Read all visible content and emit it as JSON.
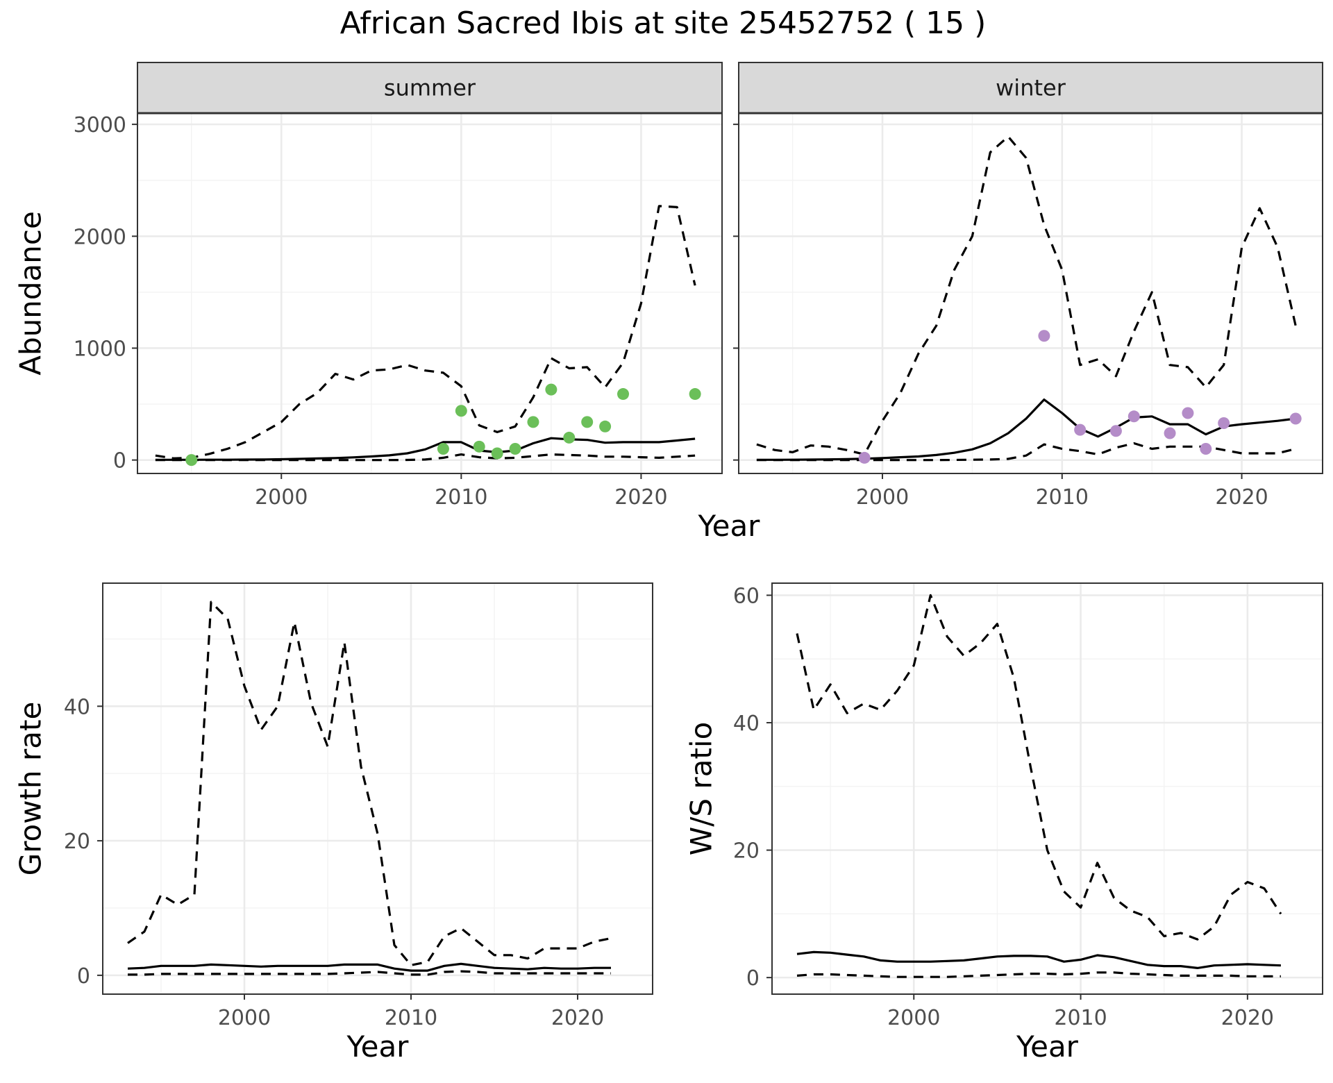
{
  "figure": {
    "title": "African Sacred Ibis at site 25452752 ( 15 )",
    "summer_color": "#6bbf59",
    "winter_color": "#b48cc8"
  },
  "chart_data": [
    {
      "type": "line",
      "panel": "summer",
      "strip_label": "summer",
      "xlabel": "Year",
      "ylabel": "Abundance",
      "xlim": [
        1992,
        2024.5
      ],
      "ylim": [
        -120,
        3100
      ],
      "xticks": [
        2000,
        2010,
        2020
      ],
      "yticks": [
        0,
        1000,
        2000,
        3000
      ],
      "grid": true,
      "series": [
        {
          "style": "solid",
          "x": [
            1993,
            1994,
            1995,
            1996,
            1997,
            1998,
            1999,
            2000,
            2001,
            2002,
            2003,
            2004,
            2005,
            2006,
            2007,
            2008,
            2009,
            2010,
            2011,
            2012,
            2013,
            2014,
            2015,
            2016,
            2017,
            2018,
            2019,
            2020,
            2021,
            2022,
            2023
          ],
          "y": [
            2,
            2,
            2,
            3,
            3,
            4,
            5,
            7,
            10,
            14,
            18,
            24,
            32,
            42,
            60,
            95,
            160,
            160,
            85,
            70,
            85,
            150,
            195,
            185,
            180,
            155,
            160,
            160,
            160,
            175,
            190
          ]
        },
        {
          "style": "dashed",
          "x": [
            1993,
            1994,
            1995,
            1996,
            1997,
            1998,
            1999,
            2000,
            2001,
            2002,
            2003,
            2004,
            2005,
            2006,
            2007,
            2008,
            2009,
            2010,
            2011,
            2012,
            2013,
            2014,
            2015,
            2016,
            2017,
            2018,
            2019,
            2020,
            2021,
            2022,
            2023
          ],
          "y": [
            40,
            15,
            20,
            55,
            100,
            160,
            250,
            340,
            500,
            600,
            770,
            720,
            800,
            810,
            850,
            800,
            780,
            660,
            310,
            250,
            300,
            560,
            910,
            820,
            830,
            650,
            870,
            1400,
            2270,
            2260,
            1560
          ]
        },
        {
          "style": "dashed",
          "x": [
            1993,
            1994,
            1995,
            1996,
            1997,
            1998,
            1999,
            2000,
            2001,
            2002,
            2003,
            2004,
            2005,
            2006,
            2007,
            2008,
            2009,
            2010,
            2011,
            2012,
            2013,
            2014,
            2015,
            2016,
            2017,
            2018,
            2019,
            2020,
            2021,
            2022,
            2023
          ],
          "y": [
            0,
            0,
            0,
            0,
            0,
            0,
            0,
            0,
            0,
            0,
            0,
            0,
            0,
            0,
            1,
            5,
            20,
            50,
            25,
            15,
            20,
            35,
            50,
            45,
            40,
            30,
            30,
            25,
            20,
            30,
            40
          ]
        }
      ],
      "points": {
        "x": [
          1995,
          2009,
          2010,
          2011,
          2012,
          2013,
          2014,
          2015,
          2016,
          2017,
          2018,
          2019,
          2023
        ],
        "y": [
          0,
          100,
          440,
          120,
          60,
          100,
          340,
          630,
          200,
          340,
          300,
          590,
          590
        ]
      }
    },
    {
      "type": "line",
      "panel": "winter",
      "strip_label": "winter",
      "xlabel": "Year",
      "ylabel": "Abundance",
      "xlim": [
        1992,
        2024.5
      ],
      "ylim": [
        -120,
        3100
      ],
      "xticks": [
        2000,
        2010,
        2020
      ],
      "yticks": [
        0,
        1000,
        2000,
        3000
      ],
      "grid": true,
      "series": [
        {
          "style": "solid",
          "x": [
            1993,
            1994,
            1995,
            1996,
            1997,
            1998,
            1999,
            2000,
            2001,
            2002,
            2003,
            2004,
            2005,
            2006,
            2007,
            2008,
            2009,
            2010,
            2011,
            2012,
            2013,
            2014,
            2015,
            2016,
            2017,
            2018,
            2019,
            2020,
            2021,
            2022,
            2023
          ],
          "y": [
            2,
            2,
            3,
            4,
            6,
            8,
            12,
            18,
            25,
            32,
            45,
            65,
            95,
            150,
            240,
            370,
            540,
            420,
            280,
            210,
            290,
            380,
            390,
            320,
            320,
            230,
            300,
            320,
            335,
            350,
            370
          ]
        },
        {
          "style": "dashed",
          "x": [
            1993,
            1994,
            1995,
            1996,
            1997,
            1998,
            1999,
            2000,
            2001,
            2002,
            2003,
            2004,
            2005,
            2006,
            2007,
            2008,
            2009,
            2010,
            2011,
            2012,
            2013,
            2014,
            2015,
            2016,
            2017,
            2018,
            2019,
            2020,
            2021,
            2022,
            2023
          ],
          "y": [
            140,
            90,
            70,
            130,
            120,
            90,
            50,
            350,
            600,
            950,
            1200,
            1700,
            2000,
            2750,
            2890,
            2700,
            2100,
            1700,
            850,
            900,
            750,
            1150,
            1500,
            850,
            830,
            650,
            850,
            1900,
            2250,
            1900,
            1200
          ]
        },
        {
          "style": "dashed",
          "x": [
            1993,
            1994,
            1995,
            1996,
            1997,
            1998,
            1999,
            2000,
            2001,
            2002,
            2003,
            2004,
            2005,
            2006,
            2007,
            2008,
            2009,
            2010,
            2011,
            2012,
            2013,
            2014,
            2015,
            2016,
            2017,
            2018,
            2019,
            2020,
            2021,
            2022,
            2023
          ],
          "y": [
            0,
            0,
            0,
            0,
            0,
            0,
            0,
            0,
            0,
            0,
            0,
            1,
            3,
            5,
            10,
            40,
            140,
            100,
            80,
            50,
            110,
            150,
            100,
            120,
            120,
            120,
            90,
            60,
            60,
            60,
            100
          ]
        }
      ],
      "points": {
        "x": [
          1999,
          2009,
          2011,
          2013,
          2014,
          2016,
          2017,
          2018,
          2019,
          2023
        ],
        "y": [
          20,
          1110,
          270,
          260,
          390,
          240,
          420,
          100,
          330,
          370
        ]
      }
    },
    {
      "type": "line",
      "panel": "growth",
      "xlabel": "Year",
      "ylabel": "Growth rate",
      "xlim": [
        1991.5,
        2024.5
      ],
      "ylim": [
        -2.8,
        58.3
      ],
      "xticks": [
        2000,
        2010,
        2020
      ],
      "yticks": [
        0,
        20,
        40
      ],
      "grid": true,
      "series": [
        {
          "style": "solid",
          "x": [
            1993,
            1994,
            1995,
            1996,
            1997,
            1998,
            1999,
            2000,
            2001,
            2002,
            2003,
            2004,
            2005,
            2006,
            2007,
            2008,
            2009,
            2010,
            2011,
            2012,
            2013,
            2014,
            2015,
            2016,
            2017,
            2018,
            2019,
            2020,
            2021,
            2022
          ],
          "y": [
            1.0,
            1.1,
            1.4,
            1.4,
            1.4,
            1.6,
            1.5,
            1.4,
            1.3,
            1.4,
            1.4,
            1.4,
            1.4,
            1.6,
            1.6,
            1.6,
            1.0,
            0.7,
            0.7,
            1.4,
            1.7,
            1.4,
            1.1,
            1.0,
            0.9,
            1.1,
            1.0,
            1.0,
            1.1,
            1.1
          ]
        },
        {
          "style": "dashed",
          "x": [
            1993,
            1994,
            1995,
            1996,
            1997,
            1998,
            1999,
            2000,
            2001,
            2002,
            2003,
            2004,
            2005,
            2006,
            2007,
            2008,
            2009,
            2010,
            2011,
            2012,
            2013,
            2014,
            2015,
            2016,
            2017,
            2018,
            2019,
            2020,
            2021,
            2022
          ],
          "y": [
            4.8,
            6.5,
            12.0,
            10.5,
            12.0,
            55.5,
            53.0,
            43.0,
            36.5,
            40.0,
            52.5,
            40.5,
            34.0,
            49.5,
            31.0,
            21.0,
            4.5,
            1.5,
            2.0,
            5.8,
            7.0,
            5.0,
            3.0,
            3.0,
            2.5,
            4.0,
            4.0,
            4.0,
            5.0,
            5.5
          ]
        },
        {
          "style": "dashed",
          "x": [
            1993,
            1994,
            1995,
            1996,
            1997,
            1998,
            1999,
            2000,
            2001,
            2002,
            2003,
            2004,
            2005,
            2006,
            2007,
            2008,
            2009,
            2010,
            2011,
            2012,
            2013,
            2014,
            2015,
            2016,
            2017,
            2018,
            2019,
            2020,
            2021,
            2022
          ],
          "y": [
            0.1,
            0.1,
            0.2,
            0.2,
            0.2,
            0.2,
            0.2,
            0.2,
            0.2,
            0.2,
            0.2,
            0.2,
            0.2,
            0.3,
            0.4,
            0.5,
            0.3,
            0.1,
            0.1,
            0.5,
            0.6,
            0.5,
            0.3,
            0.3,
            0.3,
            0.3,
            0.3,
            0.3,
            0.3,
            0.3
          ]
        }
      ]
    },
    {
      "type": "line",
      "panel": "ratio",
      "xlabel": "Year",
      "ylabel": "W/S ratio",
      "xlim": [
        1991.5,
        2024.5
      ],
      "ylim": [
        -2.6,
        61.9
      ],
      "xticks": [
        2000,
        2010,
        2020
      ],
      "yticks": [
        0,
        20,
        40,
        60
      ],
      "grid": true,
      "series": [
        {
          "style": "solid",
          "x": [
            1993,
            1994,
            1995,
            1996,
            1997,
            1998,
            1999,
            2000,
            2001,
            2002,
            2003,
            2004,
            2005,
            2006,
            2007,
            2008,
            2009,
            2010,
            2011,
            2012,
            2013,
            2014,
            2015,
            2016,
            2017,
            2018,
            2019,
            2020,
            2021,
            2022
          ],
          "y": [
            3.7,
            4.0,
            3.9,
            3.6,
            3.3,
            2.7,
            2.5,
            2.5,
            2.5,
            2.6,
            2.7,
            3.0,
            3.3,
            3.4,
            3.4,
            3.3,
            2.5,
            2.8,
            3.5,
            3.2,
            2.6,
            2.0,
            1.8,
            1.8,
            1.5,
            1.9,
            2.0,
            2.1,
            2.0,
            1.9
          ]
        },
        {
          "style": "dashed",
          "x": [
            1993,
            1994,
            1995,
            1996,
            1997,
            1998,
            1999,
            2000,
            2001,
            2002,
            2003,
            2004,
            2005,
            2006,
            2007,
            2008,
            2009,
            2010,
            2011,
            2012,
            2013,
            2014,
            2015,
            2016,
            2017,
            2018,
            2019,
            2020,
            2021,
            2022
          ],
          "y": [
            54.0,
            42.0,
            46.0,
            41.5,
            43.0,
            42.0,
            45.0,
            49.0,
            60.0,
            53.5,
            50.5,
            52.5,
            55.5,
            47.0,
            33.0,
            20.0,
            13.5,
            11.0,
            18.0,
            12.5,
            10.5,
            9.5,
            6.5,
            7.0,
            6.0,
            8.0,
            13.0,
            15.0,
            14.0,
            10.0
          ]
        },
        {
          "style": "dashed",
          "x": [
            1993,
            1994,
            1995,
            1996,
            1997,
            1998,
            1999,
            2000,
            2001,
            2002,
            2003,
            2004,
            2005,
            2006,
            2007,
            2008,
            2009,
            2010,
            2011,
            2012,
            2013,
            2014,
            2015,
            2016,
            2017,
            2018,
            2019,
            2020,
            2021,
            2022
          ],
          "y": [
            0.3,
            0.5,
            0.5,
            0.4,
            0.3,
            0.2,
            0.1,
            0.1,
            0.1,
            0.1,
            0.2,
            0.3,
            0.4,
            0.5,
            0.6,
            0.6,
            0.5,
            0.6,
            0.8,
            0.8,
            0.6,
            0.5,
            0.4,
            0.3,
            0.3,
            0.3,
            0.3,
            0.2,
            0.2,
            0.2
          ]
        }
      ]
    }
  ]
}
